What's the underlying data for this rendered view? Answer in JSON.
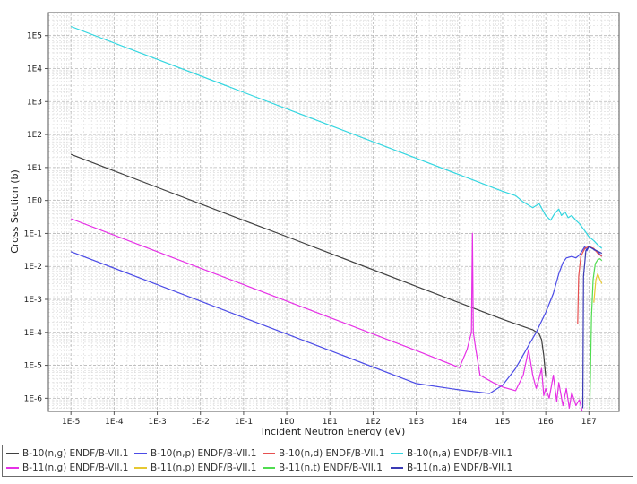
{
  "chart_data": {
    "type": "line",
    "title": "",
    "xlabel": "Incident Neutron Energy (eV)",
    "ylabel": "Cross Section (b)",
    "xscale": "log",
    "yscale": "log",
    "xlim": [
      3e-06,
      50000000.0
    ],
    "ylim": [
      4e-07,
      500000.0
    ],
    "grid": true,
    "legend_position": "bottom",
    "xticks": [
      "1E-5",
      "1E-4",
      "1E-3",
      "1E-2",
      "1E-1",
      "1E0",
      "1E1",
      "1E2",
      "1E3",
      "1E4",
      "1E5",
      "1E6",
      "1E7"
    ],
    "xtick_values": [
      1e-05,
      0.0001,
      0.001,
      0.01,
      0.1,
      1,
      10,
      100,
      1000,
      10000.0,
      100000.0,
      1000000.0,
      10000000.0
    ],
    "yticks": [
      "1E-6",
      "1E-5",
      "1E-4",
      "1E-3",
      "1E-2",
      "1E-1",
      "1E0",
      "1E1",
      "1E2",
      "1E3",
      "1E4",
      "1E5"
    ],
    "ytick_values": [
      1e-06,
      1e-05,
      0.0001,
      0.001,
      0.01,
      0.1,
      1,
      10,
      100,
      1000,
      10000.0,
      100000.0
    ],
    "series": [
      {
        "name": "B-10(n,g) ENDF/B-VII.1",
        "color": "#404040",
        "x": [
          1e-05,
          0.001,
          0.1,
          1,
          10,
          1000,
          100000.0,
          300000.0,
          500000.0,
          700000.0,
          800000.0,
          900000.0,
          1000000.0
        ],
        "y": [
          25,
          2.5,
          0.25,
          0.08,
          0.025,
          0.0025,
          0.00025,
          0.00015,
          0.00012,
          9e-05,
          6e-05,
          2e-05,
          4.5e-06
        ]
      },
      {
        "name": "B-10(n,p) ENDF/B-VII.1",
        "color": "#4b4be6",
        "x": [
          1e-05,
          0.001,
          0.1,
          10,
          1000,
          10000.0,
          50000.0,
          100000.0,
          200000.0,
          400000.0,
          600000.0,
          1000000.0,
          1500000.0,
          2000000.0,
          2500000.0,
          3000000.0,
          4000000.0,
          5000000.0,
          6000000.0,
          7000000.0,
          8000000.0,
          9000000.0,
          10000000.0,
          12000000.0,
          14000000.0,
          16000000.0,
          20000000.0
        ],
        "y": [
          0.028,
          0.0028,
          0.00028,
          2.8e-05,
          2.8e-06,
          1.8e-06,
          1.4e-06,
          2.5e-06,
          8e-06,
          4e-05,
          0.0001,
          0.0004,
          0.0015,
          0.006,
          0.013,
          0.018,
          0.02,
          0.018,
          0.022,
          0.03,
          0.04,
          0.03,
          0.04,
          0.035,
          0.03,
          0.028,
          0.02
        ]
      },
      {
        "name": "B-10(n,d) ENDF/B-VII.1",
        "color": "#e65050",
        "x": [
          5500000.0,
          5800000.0,
          6500000.0,
          8000000.0,
          10000000.0,
          13000000.0,
          16000000.0,
          20000000.0
        ],
        "y": [
          0.00018,
          0.005,
          0.02,
          0.035,
          0.04,
          0.035,
          0.025,
          0.02
        ]
      },
      {
        "name": "B-10(n,a) ENDF/B-VII.1",
        "color": "#33d6e0",
        "x": [
          1e-05,
          0.001,
          0.1,
          10,
          1000,
          100000.0,
          200000.0,
          300000.0,
          500000.0,
          700000.0,
          1000000.0,
          1300000.0,
          1600000.0,
          2000000.0,
          2300000.0,
          2800000.0,
          3300000.0,
          4000000.0,
          5000000.0,
          6000000.0,
          8000000.0,
          10000000.0,
          13000000.0,
          16000000.0,
          20000000.0
        ],
        "y": [
          190000,
          19000,
          1900,
          190,
          19,
          1.9,
          1.4,
          0.9,
          0.6,
          0.8,
          0.35,
          0.25,
          0.4,
          0.55,
          0.35,
          0.45,
          0.3,
          0.35,
          0.25,
          0.2,
          0.12,
          0.08,
          0.06,
          0.045,
          0.035
        ]
      },
      {
        "name": "B-11(n,g) ENDF/B-VII.1",
        "color": "#e630e6",
        "x": [
          1e-05,
          0.001,
          0.1,
          10,
          1000,
          10000.0,
          15000.0,
          19000.0,
          20000.0,
          21000.0,
          24000.0,
          30000.0,
          60000.0,
          100000.0,
          200000.0,
          300000.0,
          400000.0,
          500000.0,
          600000.0,
          700000.0,
          800000.0,
          900000.0,
          1000000.0,
          1200000.0,
          1500000.0,
          1800000.0,
          2000000.0,
          2500000.0,
          3000000.0,
          3500000.0,
          4000000.0,
          5000000.0,
          6000000.0,
          7000000.0
        ],
        "y": [
          0.28,
          0.028,
          0.0028,
          0.00028,
          2.8e-05,
          8.5e-06,
          3e-05,
          0.0001,
          0.1,
          0.0001,
          3e-05,
          5e-06,
          3e-06,
          2.2e-06,
          1.7e-06,
          5e-06,
          3e-05,
          5e-06,
          2e-06,
          4e-06,
          8e-06,
          1.2e-06,
          2e-06,
          1e-06,
          5e-06,
          8e-07,
          3e-06,
          6e-07,
          2e-06,
          5e-07,
          1.5e-06,
          6e-07,
          9e-07,
          4e-07
        ]
      },
      {
        "name": "B-11(n,p) ENDF/B-VII.1",
        "color": "#e6c832",
        "x": [
          13000000.0,
          14500000.0,
          16000000.0,
          18000000.0,
          20000000.0
        ],
        "y": [
          0.0008,
          0.004,
          0.006,
          0.004,
          0.003
        ]
      },
      {
        "name": "B-11(n,t) ENDF/B-VII.1",
        "color": "#50dc50",
        "x": [
          10500000.0,
          11500000.0,
          12500000.0,
          14000000.0,
          16000000.0,
          18000000.0,
          20000000.0
        ],
        "y": [
          5e-07,
          0.0003,
          0.004,
          0.012,
          0.016,
          0.017,
          0.015
        ]
      },
      {
        "name": "B-11(n,a) ENDF/B-VII.1",
        "color": "#3a3ab4",
        "x": [
          7200000.0,
          7500000.0,
          8500000.0,
          10000000.0,
          12000000.0,
          15000000.0,
          20000000.0
        ],
        "y": [
          5e-07,
          0.005,
          0.03,
          0.04,
          0.035,
          0.03,
          0.025
        ]
      }
    ]
  },
  "legend": [
    [
      "B-10(n,g) ENDF/B-VII.1",
      "B-10(n,p) ENDF/B-VII.1",
      "B-10(n,d) ENDF/B-VII.1",
      "B-10(n,a) ENDF/B-VII.1"
    ],
    [
      "B-11(n,g) ENDF/B-VII.1",
      "B-11(n,p) ENDF/B-VII.1",
      "B-11(n,t) ENDF/B-VII.1",
      "B-11(n,a) ENDF/B-VII.1"
    ]
  ]
}
